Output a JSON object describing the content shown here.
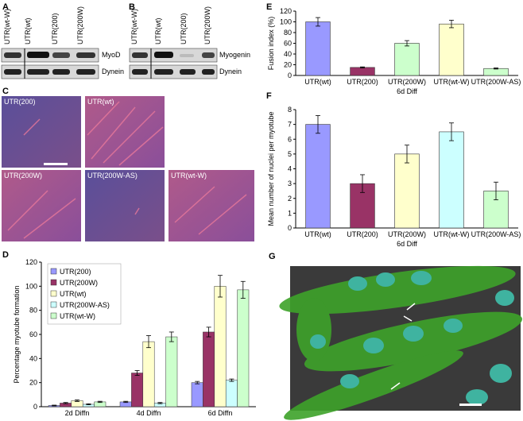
{
  "panel_labels": [
    "A",
    "B",
    "C",
    "D",
    "E",
    "F",
    "G"
  ],
  "blot_a": {
    "columns": [
      "UTR(wt-W)",
      "UTR(wt)",
      "UTR(200)",
      "UTR(200W)"
    ],
    "rows": [
      "MyoD",
      "Dynein"
    ]
  },
  "blot_b": {
    "columns": [
      "UTR(wt-W)",
      "UTR(wt)",
      "UTR(200)",
      "UTR(200W)"
    ],
    "rows": [
      "Myogenin",
      "Dynein"
    ]
  },
  "micrographs": [
    "UTR(200)",
    "UTR(wt)",
    "UTR(200W)",
    "UTR(200W-AS)",
    "UTR(wt-W)"
  ],
  "chart_data": [
    {
      "type": "bar",
      "y_label": "Percentage myotube formation",
      "categories": [
        "2d  Diffn",
        "4d Diffn",
        "6d Diffn"
      ],
      "series": [
        {
          "name": "UTR(200)",
          "color": "#9999ff",
          "values": [
            1,
            4,
            20
          ],
          "errors": [
            0.3,
            0.5,
            1
          ]
        },
        {
          "name": "UTR(200W)",
          "color": "#993366",
          "values": [
            3,
            28,
            62
          ],
          "errors": [
            0.5,
            2,
            4
          ]
        },
        {
          "name": "UTR(wt)",
          "color": "#ffffcc",
          "values": [
            5,
            54,
            100
          ],
          "errors": [
            0.7,
            5,
            9
          ]
        },
        {
          "name": "UTR(200W-AS)",
          "color": "#ccffff",
          "values": [
            2,
            3,
            22
          ],
          "errors": [
            0.4,
            0.5,
            1
          ]
        },
        {
          "name": "UTR(wt-W)",
          "color": "#ccffcc",
          "values": [
            4,
            58,
            97
          ],
          "errors": [
            0.5,
            4,
            7
          ]
        }
      ],
      "ylim": [
        0,
        120
      ],
      "yticks": [
        0,
        20,
        40,
        60,
        80,
        100,
        120
      ],
      "legend": "top-left"
    },
    {
      "type": "bar",
      "y_label": "Fusion index (%)",
      "x_label": "6d Diff",
      "categories": [
        "UTR(wt)",
        "UTR(200)",
        "UTR(200W)",
        "UTR(wt-W)",
        "UTR(200W-AS)"
      ],
      "values": [
        100,
        15,
        60,
        96,
        13
      ],
      "errors": [
        8,
        1,
        5,
        7,
        1
      ],
      "colors": [
        "#9999ff",
        "#993366",
        "#ccffcc",
        "#ffffcc",
        "#ccffcc"
      ],
      "ylim": [
        0,
        120
      ],
      "yticks": [
        0,
        20,
        40,
        60,
        80,
        100,
        120
      ]
    },
    {
      "type": "bar",
      "y_label": "Mean number of nuclei per myotube",
      "x_label": "6d Diff",
      "categories": [
        "UTR(wt)",
        "UTR(200)",
        "UTR(200W)",
        "UTR(wt-W)",
        "UTR(200W-AS)"
      ],
      "values": [
        7,
        3,
        5,
        6.5,
        2.5
      ],
      "errors": [
        0.6,
        0.6,
        0.6,
        0.6,
        0.6
      ],
      "colors": [
        "#9999ff",
        "#993366",
        "#ffffcc",
        "#ccffff",
        "#ccffcc"
      ],
      "ylim": [
        0,
        8
      ],
      "yticks": [
        0,
        1,
        2,
        3,
        4,
        5,
        6,
        7,
        8
      ]
    }
  ]
}
